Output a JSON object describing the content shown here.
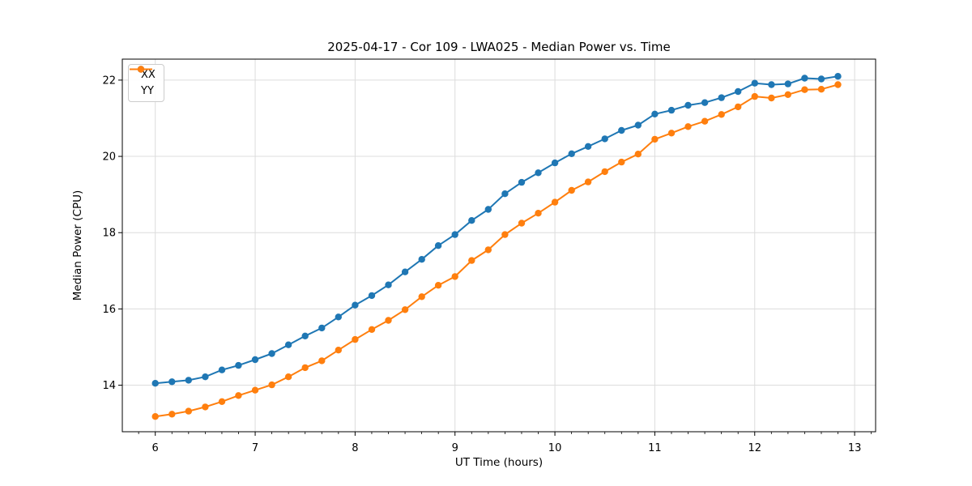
{
  "chart_data": {
    "type": "line",
    "title": "2025-04-17 - Cor 109 - LWA025 - Median Power vs. Time",
    "xlabel": "UT Time (hours)",
    "ylabel": "Median Power (CPU)",
    "xlim": [
      5.67,
      13.21
    ],
    "ylim": [
      12.78,
      22.55
    ],
    "xticks": [
      6,
      7,
      8,
      9,
      10,
      11,
      12,
      13
    ],
    "yticks": [
      14,
      16,
      18,
      20,
      22
    ],
    "minor_xticks_per_hour": 6,
    "grid": true,
    "legend_position": "upper-left",
    "background_color": "#ffffff",
    "grid_color": "#dcdcdc",
    "x": [
      6.0,
      6.167,
      6.333,
      6.5,
      6.667,
      6.833,
      7.0,
      7.167,
      7.333,
      7.5,
      7.667,
      7.833,
      8.0,
      8.167,
      8.333,
      8.5,
      8.667,
      8.833,
      9.0,
      9.167,
      9.333,
      9.5,
      9.667,
      9.833,
      10.0,
      10.167,
      10.333,
      10.5,
      10.667,
      10.833,
      11.0,
      11.167,
      11.333,
      11.5,
      11.667,
      11.833,
      12.0,
      12.167,
      12.333,
      12.5,
      12.667,
      12.833
    ],
    "series": [
      {
        "name": "XX",
        "color": "#1f77b4",
        "values": [
          14.05,
          14.09,
          14.13,
          14.22,
          14.4,
          14.52,
          14.67,
          14.83,
          15.06,
          15.29,
          15.5,
          15.79,
          16.1,
          16.35,
          16.63,
          16.97,
          17.3,
          17.66,
          17.95,
          18.32,
          18.61,
          19.02,
          19.32,
          19.57,
          19.83,
          20.07,
          20.26,
          20.46,
          20.68,
          20.82,
          21.11,
          21.21,
          21.34,
          21.41,
          21.54,
          21.7,
          21.92,
          21.88,
          21.9,
          22.05,
          22.03,
          22.1
        ]
      },
      {
        "name": "YY",
        "color": "#ff7f0e",
        "values": [
          13.18,
          13.24,
          13.32,
          13.43,
          13.57,
          13.73,
          13.87,
          14.01,
          14.22,
          14.46,
          14.64,
          14.92,
          15.2,
          15.46,
          15.7,
          15.98,
          16.32,
          16.62,
          16.85,
          17.27,
          17.55,
          17.95,
          18.25,
          18.51,
          18.8,
          19.11,
          19.33,
          19.6,
          19.85,
          20.06,
          20.45,
          20.61,
          20.78,
          20.92,
          21.1,
          21.3,
          21.57,
          21.53,
          21.62,
          21.75,
          21.76,
          21.88
        ]
      }
    ]
  }
}
